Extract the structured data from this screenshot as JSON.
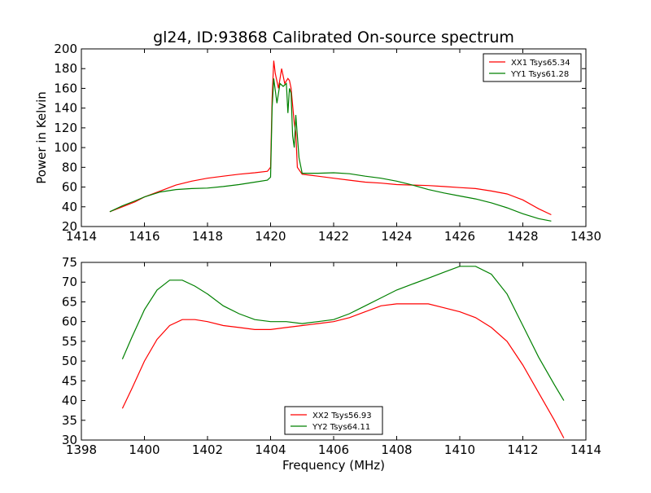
{
  "chart_data": [
    {
      "type": "line",
      "title": "gl24, ID:93868 Calibrated On-source spectrum",
      "xlabel": "",
      "ylabel": "Power in Kelvin",
      "xlim": [
        1414,
        1430
      ],
      "ylim": [
        20,
        200
      ],
      "xticks": [
        1414,
        1416,
        1418,
        1420,
        1422,
        1424,
        1426,
        1428,
        1430
      ],
      "yticks": [
        20,
        40,
        60,
        80,
        100,
        120,
        140,
        160,
        180,
        200
      ],
      "legend_position": "top-right",
      "series": [
        {
          "name": "XX1 Tsys65.34",
          "color": "#ff0000",
          "x": [
            1414.9,
            1415.3,
            1415.7,
            1416.0,
            1416.5,
            1417.0,
            1417.5,
            1418.0,
            1418.5,
            1419.0,
            1419.5,
            1419.9,
            1420.0,
            1420.05,
            1420.1,
            1420.15,
            1420.25,
            1420.35,
            1420.45,
            1420.55,
            1420.6,
            1420.65,
            1420.75,
            1420.8,
            1420.85,
            1421.0,
            1421.5,
            1422.0,
            1422.5,
            1423.0,
            1423.5,
            1424.0,
            1424.5,
            1425.0,
            1425.5,
            1426.0,
            1426.5,
            1427.0,
            1427.5,
            1428.0,
            1428.5,
            1428.9
          ],
          "y": [
            35,
            40,
            45,
            50,
            56,
            62,
            66,
            69,
            71,
            73,
            74.5,
            76,
            80,
            150,
            188,
            175,
            160,
            180,
            165,
            170,
            168,
            160,
            125,
            115,
            80,
            73,
            71,
            69,
            67,
            65,
            64,
            62.5,
            62,
            61.5,
            60.5,
            59.5,
            58.5,
            56,
            53,
            47,
            38,
            32
          ]
        },
        {
          "name": "YY1 Tsys61.28",
          "color": "#008000",
          "x": [
            1414.9,
            1415.3,
            1415.7,
            1416.0,
            1416.5,
            1417.0,
            1417.5,
            1418.0,
            1418.5,
            1419.0,
            1419.5,
            1419.9,
            1420.0,
            1420.05,
            1420.1,
            1420.2,
            1420.3,
            1420.4,
            1420.5,
            1420.55,
            1420.6,
            1420.65,
            1420.7,
            1420.75,
            1420.8,
            1420.9,
            1421.0,
            1421.5,
            1422.0,
            1422.5,
            1423.0,
            1423.5,
            1424.0,
            1424.5,
            1425.0,
            1425.5,
            1426.0,
            1426.5,
            1427.0,
            1427.5,
            1428.0,
            1428.5,
            1428.9
          ],
          "y": [
            35,
            41,
            46,
            50,
            55,
            57.5,
            58.5,
            59,
            60.5,
            62.5,
            65,
            67,
            70,
            140,
            170,
            145,
            165,
            162,
            165,
            135,
            160,
            155,
            112,
            100,
            133,
            90,
            74,
            74,
            74.5,
            73.5,
            71,
            69,
            66,
            62,
            57.5,
            54,
            51,
            48,
            44,
            39,
            33,
            28,
            25.5
          ]
        }
      ]
    },
    {
      "type": "line",
      "title": "",
      "xlabel": "Frequency (MHz)",
      "ylabel": "",
      "xlim": [
        1398,
        1414
      ],
      "ylim": [
        30,
        75
      ],
      "xticks": [
        1398,
        1400,
        1402,
        1404,
        1406,
        1408,
        1410,
        1412,
        1414
      ],
      "yticks": [
        30,
        35,
        40,
        45,
        50,
        55,
        60,
        65,
        70,
        75
      ],
      "legend_position": "bottom-center",
      "series": [
        {
          "name": "XX2 Tsys56.93",
          "color": "#ff0000",
          "x": [
            1399.3,
            1399.6,
            1400.0,
            1400.4,
            1400.8,
            1401.2,
            1401.6,
            1402.0,
            1402.5,
            1403.0,
            1403.5,
            1404.0,
            1404.5,
            1405.0,
            1405.5,
            1406.0,
            1406.5,
            1407.0,
            1407.5,
            1408.0,
            1408.5,
            1409.0,
            1409.5,
            1410.0,
            1410.5,
            1411.0,
            1411.5,
            1412.0,
            1412.5,
            1413.0,
            1413.3
          ],
          "y": [
            38,
            43,
            50,
            55.5,
            59,
            60.5,
            60.5,
            60,
            59,
            58.5,
            58,
            58,
            58.5,
            59,
            59.5,
            60,
            61,
            62.5,
            64,
            64.5,
            64.5,
            64.5,
            63.5,
            62.5,
            61,
            58.5,
            55,
            49,
            42,
            35,
            30.5
          ]
        },
        {
          "name": "YY2 Tsys64.11",
          "color": "#008000",
          "x": [
            1399.3,
            1399.6,
            1400.0,
            1400.4,
            1400.8,
            1401.2,
            1401.6,
            1402.0,
            1402.5,
            1403.0,
            1403.5,
            1404.0,
            1404.5,
            1405.0,
            1405.5,
            1406.0,
            1406.5,
            1407.0,
            1407.5,
            1408.0,
            1408.5,
            1409.0,
            1409.5,
            1410.0,
            1410.5,
            1411.0,
            1411.5,
            1412.0,
            1412.5,
            1413.0,
            1413.3
          ],
          "y": [
            50.5,
            56,
            63,
            68,
            70.5,
            70.5,
            69,
            67,
            64,
            62,
            60.5,
            60,
            60,
            59.5,
            60,
            60.5,
            62,
            64,
            66,
            68,
            69.5,
            71,
            72.5,
            74,
            74,
            72,
            67,
            59,
            51,
            44,
            40
          ]
        }
      ]
    }
  ]
}
